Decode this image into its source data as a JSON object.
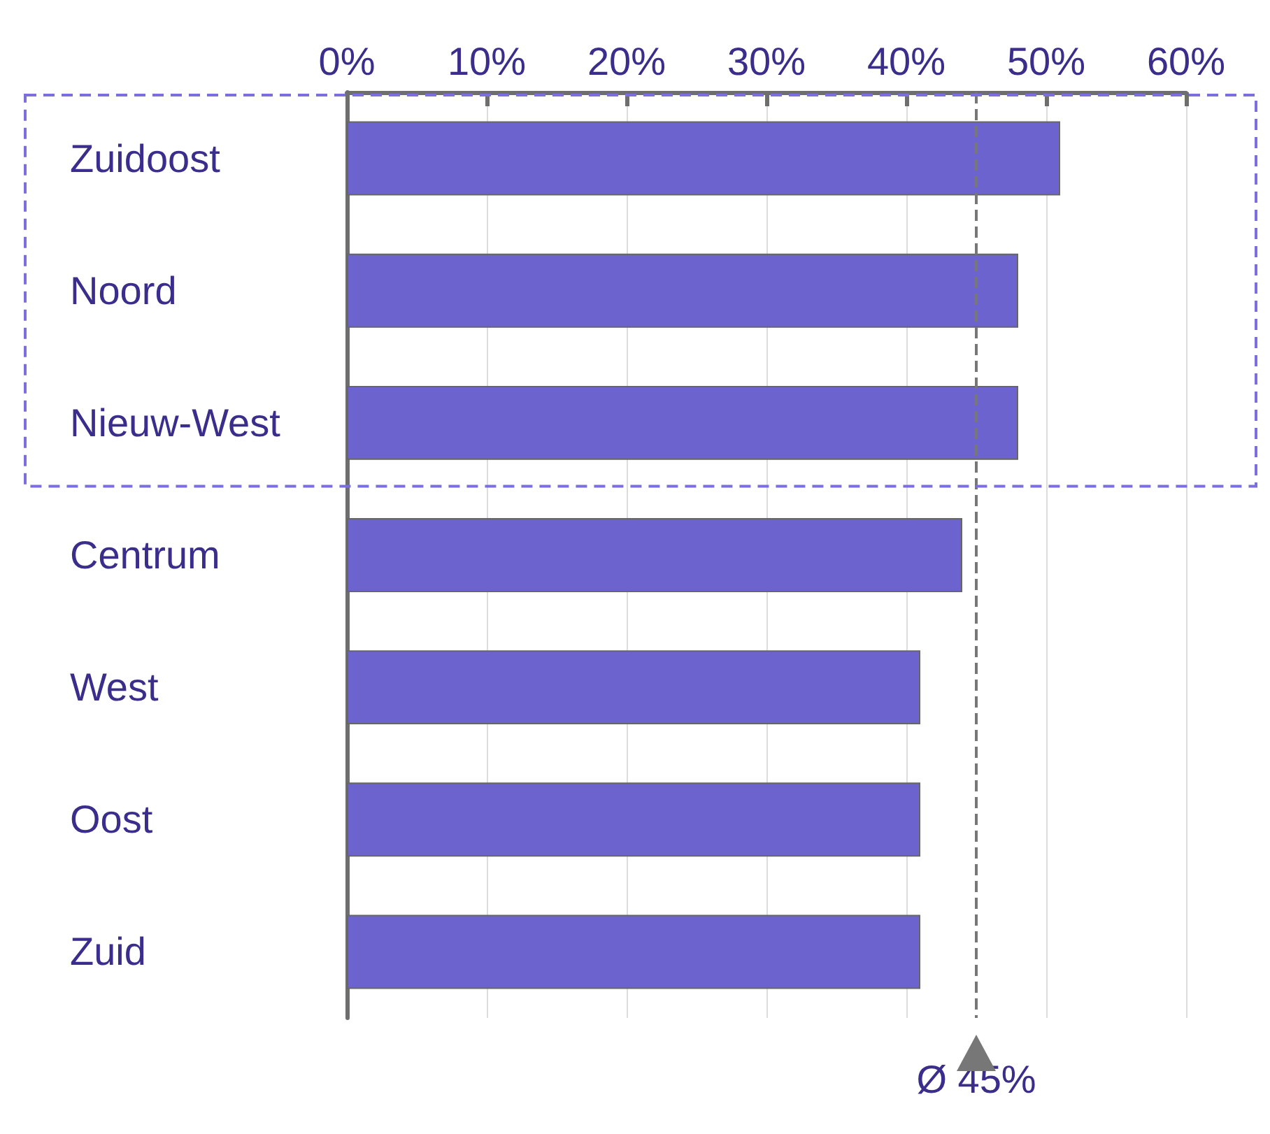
{
  "chart_data": {
    "type": "bar",
    "orientation": "horizontal",
    "categories": [
      "Zuidoost",
      "Noord",
      "Nieuw-West",
      "Centrum",
      "West",
      "Oost",
      "Zuid"
    ],
    "values": [
      51,
      48,
      48,
      44,
      41,
      41,
      41
    ],
    "color": "#6c63cf",
    "xlim": [
      0,
      60
    ],
    "xticks": [
      {
        "value": 0,
        "label": "0%"
      },
      {
        "value": 10,
        "label": "10%"
      },
      {
        "value": 20,
        "label": "20%"
      },
      {
        "value": 30,
        "label": "30%"
      },
      {
        "value": 40,
        "label": "40%"
      },
      {
        "value": 50,
        "label": "50%"
      },
      {
        "value": 60,
        "label": "60%"
      }
    ],
    "grid": "x",
    "ref_lines": [
      {
        "axis": "x",
        "value": 45,
        "label": "Ø 45%",
        "color": "#777777",
        "line_style": "dashed"
      }
    ]
  }
}
